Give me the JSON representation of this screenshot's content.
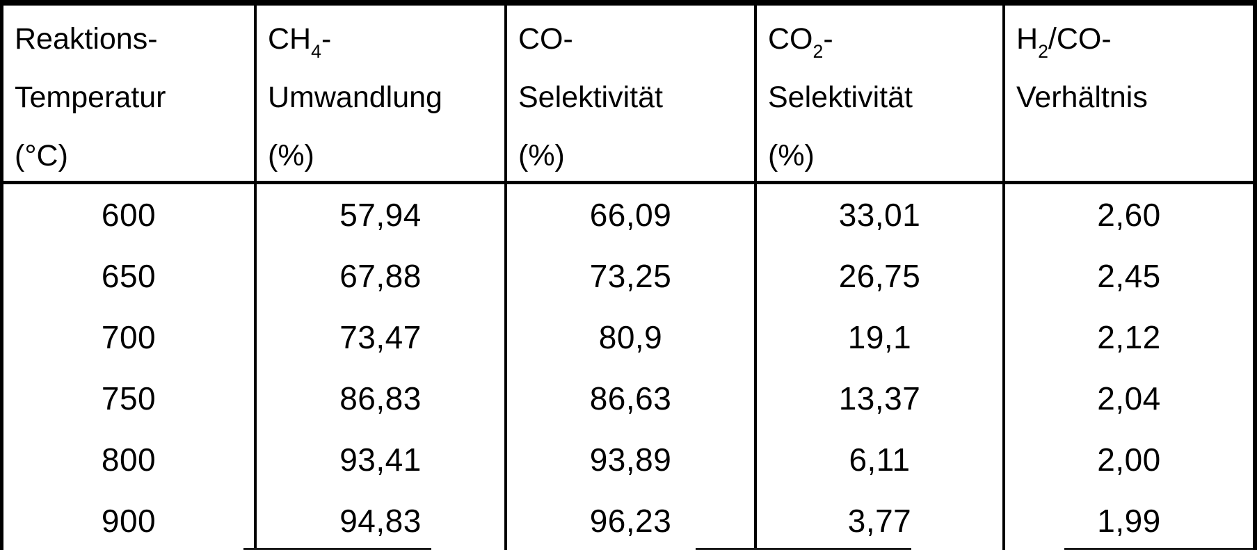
{
  "table": {
    "headers": [
      {
        "pre": "Reaktions-",
        "sub": "",
        "post": "",
        "line2": "Temperatur",
        "line3": "(°C)"
      },
      {
        "pre": "CH",
        "sub": "4",
        "post": "-",
        "line2": "Umwandlung",
        "line3": "(%)"
      },
      {
        "pre": "CO-",
        "sub": "",
        "post": "",
        "line2": "Selektivität",
        "line3": "(%)"
      },
      {
        "pre": "CO",
        "sub": "2",
        "post": "-",
        "line2": "Selektivität",
        "line3": "(%)"
      },
      {
        "pre": "H",
        "sub": "2",
        "post": "/CO-",
        "line2": "Verhältnis",
        "line3": ""
      }
    ],
    "rows": [
      {
        "temperature": "600",
        "ch4_umwandlung": "57,94",
        "co_selektivitaet": "66,09",
        "co2_selektivitaet": "33,01",
        "h2_co_verhaeltnis": "2,60"
      },
      {
        "temperature": "650",
        "ch4_umwandlung": "67,88",
        "co_selektivitaet": "73,25",
        "co2_selektivitaet": "26,75",
        "h2_co_verhaeltnis": "2,45"
      },
      {
        "temperature": "700",
        "ch4_umwandlung": "73,47",
        "co_selektivitaet": "80,9",
        "co2_selektivitaet": "19,1",
        "h2_co_verhaeltnis": "2,12"
      },
      {
        "temperature": "750",
        "ch4_umwandlung": "86,83",
        "co_selektivitaet": "86,63",
        "co2_selektivitaet": "13,37",
        "h2_co_verhaeltnis": "2,04"
      },
      {
        "temperature": "800",
        "ch4_umwandlung": "93,41",
        "co_selektivitaet": "93,89",
        "co2_selektivitaet": "6,11",
        "h2_co_verhaeltnis": "2,00"
      },
      {
        "temperature": "900",
        "ch4_umwandlung": "94,83",
        "co_selektivitaet": "96,23",
        "co2_selektivitaet": "3,77",
        "h2_co_verhaeltnis": "1,99"
      }
    ]
  },
  "chart_data": {
    "type": "table",
    "title": "",
    "columns": [
      "Reaktions-Temperatur (°C)",
      "CH₄-Umwandlung (%)",
      "CO-Selektivität (%)",
      "CO₂-Selektivität (%)",
      "H₂/CO-Verhältnis"
    ],
    "rows": [
      [
        600,
        57.94,
        66.09,
        33.01,
        2.6
      ],
      [
        650,
        67.88,
        73.25,
        26.75,
        2.45
      ],
      [
        700,
        73.47,
        80.9,
        19.1,
        2.12
      ],
      [
        750,
        86.83,
        86.63,
        13.37,
        2.04
      ],
      [
        800,
        93.41,
        93.89,
        6.11,
        2.0
      ],
      [
        900,
        94.83,
        96.23,
        3.77,
        1.99
      ]
    ],
    "decimal_separator": ",",
    "colors": {
      "ink": "#000000",
      "paper": "#ffffff"
    }
  }
}
